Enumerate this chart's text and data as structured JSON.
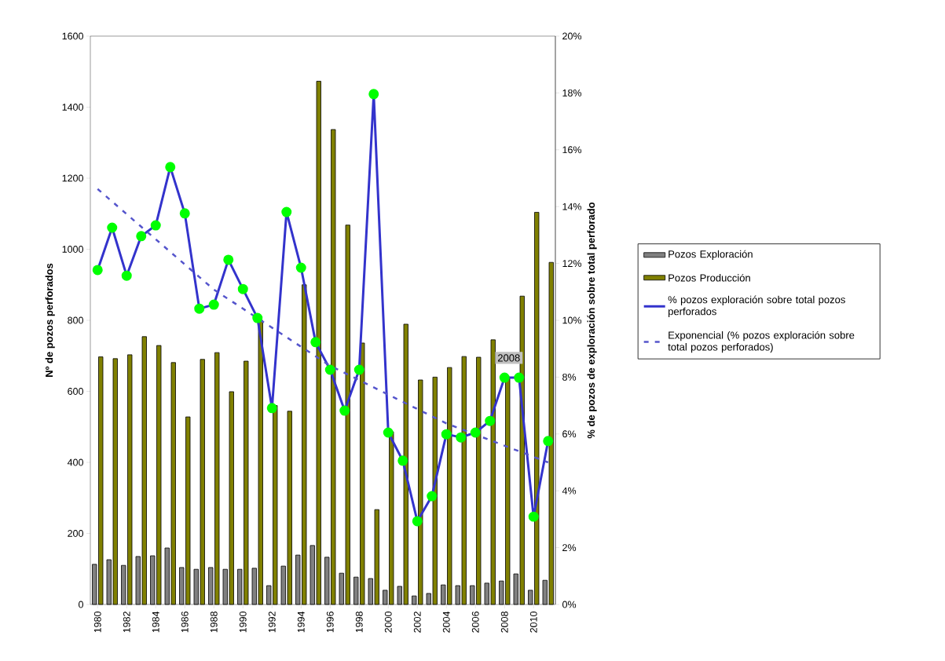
{
  "chart_data": {
    "type": "bar",
    "xlabel": null,
    "ylabel": "Nº de pozos perforados",
    "y2label": "% de pozos de exploración sobre total perforado",
    "x": [
      1980,
      1981,
      1982,
      1983,
      1984,
      1985,
      1986,
      1987,
      1988,
      1989,
      1990,
      1991,
      1992,
      1993,
      1994,
      1995,
      1996,
      1997,
      1998,
      1999,
      2000,
      2001,
      2002,
      2003,
      2004,
      2005,
      2006,
      2007,
      2008,
      2009,
      2010,
      2011
    ],
    "xlim": [
      1979.5,
      2011.5
    ],
    "xticks": [
      1980,
      1982,
      1984,
      1986,
      1988,
      1990,
      1992,
      1994,
      1996,
      1998,
      2000,
      2002,
      2004,
      2006,
      2008,
      2010
    ],
    "ylim": [
      0,
      1600
    ],
    "yticks": [
      0,
      200,
      400,
      600,
      800,
      1000,
      1200,
      1400,
      1600
    ],
    "y2lim": [
      0,
      20
    ],
    "y2ticks": [
      {
        "value": 0,
        "label": "0%"
      },
      {
        "value": 2,
        "label": "2%"
      },
      {
        "value": 4,
        "label": "4%"
      },
      {
        "value": 6,
        "label": "6%"
      },
      {
        "value": 8,
        "label": "8%"
      },
      {
        "value": 10,
        "label": "10%"
      },
      {
        "value": 12,
        "label": "12%"
      },
      {
        "value": 14,
        "label": "14%"
      },
      {
        "value": 16,
        "label": "16%"
      },
      {
        "value": 18,
        "label": "18%"
      },
      {
        "value": 20,
        "label": "20%"
      }
    ],
    "legend": "right",
    "series": [
      {
        "name": "Pozos Exploración",
        "color": "#808080",
        "values": [
          113,
          126,
          110,
          135,
          137,
          159,
          104,
          99,
          104,
          99,
          99,
          102,
          53,
          108,
          139,
          166,
          133,
          88,
          77,
          73,
          40,
          51,
          24,
          31,
          55,
          53,
          53,
          60,
          66,
          86,
          40,
          68
        ]
      },
      {
        "name": "Pozos Producción",
        "color": "#808000",
        "values": [
          697,
          692,
          703,
          754,
          729,
          681,
          528,
          690,
          709,
          599,
          685,
          800,
          560,
          544,
          900,
          1473,
          1337,
          1068,
          736,
          267,
          486,
          789,
          632,
          640,
          667,
          698,
          696,
          745,
          640,
          868,
          1104,
          963
        ]
      },
      {
        "name": "% pozos exploración sobre total pozos perforados",
        "type": "line",
        "axis": "y2",
        "color": "#3333CC",
        "marker": "circle",
        "line_style": "solid",
        "values": [
          11.77,
          13.26,
          11.57,
          12.96,
          13.34,
          15.39,
          13.76,
          10.41,
          10.55,
          12.13,
          11.1,
          10.08,
          6.91,
          13.81,
          11.85,
          9.23,
          8.26,
          6.82,
          8.26,
          17.96,
          6.05,
          5.06,
          2.93,
          3.81,
          5.99,
          5.88,
          6.05,
          6.46,
          7.98,
          7.98,
          3.09,
          5.75
        ]
      },
      {
        "name": "Exponencial (% pozos exploración sobre total pozos perforados)",
        "type": "line",
        "axis": "y2",
        "color": "#5555CC",
        "marker": "none",
        "line_style": "dashed",
        "x": [
          1980,
          1988,
          1996,
          2004,
          2011
        ],
        "values": [
          14.62,
          11.08,
          8.4,
          6.37,
          5.0
        ]
      }
    ],
    "annotations": [
      "2008"
    ]
  }
}
